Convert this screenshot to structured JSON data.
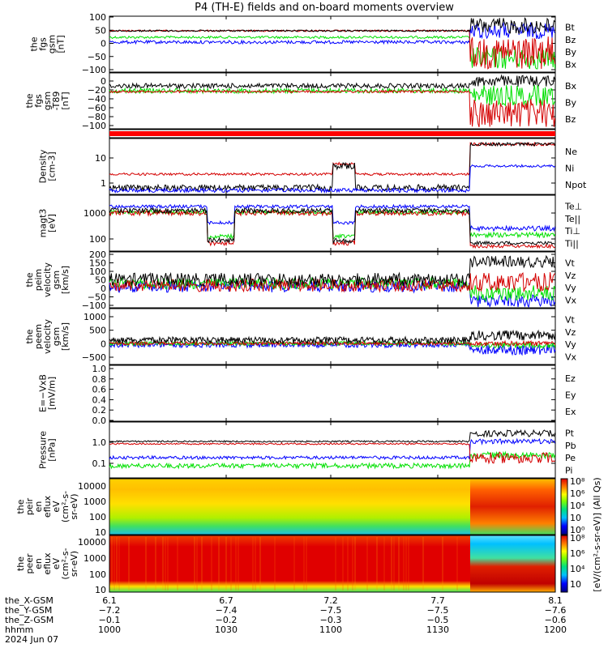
{
  "title": "P4 (TH-E) fields and on-board moments overview",
  "colors": {
    "black": "#000000",
    "red": "#d40000",
    "green": "#00e000",
    "blue": "#0000ff",
    "panel_border": "#000000"
  },
  "panels": [
    {
      "id": "fgs",
      "ylabel": [
        "the",
        "fgs",
        "gsm",
        "[nT]"
      ],
      "yticks": [
        "100",
        "50",
        "0",
        "−50",
        "−100"
      ],
      "legend": [
        {
          "text": "Bt",
          "color": "black"
        },
        {
          "text": "Bz",
          "color": "red"
        },
        {
          "text": "By",
          "color": "green"
        },
        {
          "text": "Bx",
          "color": "blue"
        }
      ]
    },
    {
      "id": "fgs_dc",
      "ylabel": [
        "the",
        "fgs",
        "gsm",
        "-T89",
        "[nT]"
      ],
      "yticks": [
        "0",
        "−20",
        "−40",
        "−60",
        "−80",
        "−100"
      ],
      "legend": [
        {
          "text": "Bx",
          "color": "black"
        },
        {
          "text": "By",
          "color": "green"
        },
        {
          "text": "Bz",
          "color": "red"
        }
      ]
    },
    {
      "id": "mode_bar",
      "ylabel": [],
      "yticks": [],
      "legend": []
    },
    {
      "id": "density",
      "ylabel": [
        "Density",
        "[cm-3]"
      ],
      "yticks": [
        "10",
        "1"
      ],
      "legend": [
        {
          "text": "Ne",
          "color": "red"
        },
        {
          "text": "Ni",
          "color": "black"
        },
        {
          "text": "Npot",
          "color": "blue"
        }
      ]
    },
    {
      "id": "temp",
      "ylabel": [
        "magt3",
        "[eV]"
      ],
      "yticks": [
        "1000",
        "100"
      ],
      "legend": [
        {
          "text": "Te⊥",
          "color": "red"
        },
        {
          "text": "Te||",
          "color": "black"
        },
        {
          "text": "Ti⊥",
          "color": "blue"
        },
        {
          "text": "Ti||",
          "color": "green"
        }
      ]
    },
    {
      "id": "vi",
      "ylabel": [
        "the",
        "peim",
        "velocity",
        "gsm",
        "[km/s]"
      ],
      "yticks": [
        "200",
        "150",
        "100",
        "50",
        "0",
        "−50",
        "−100"
      ],
      "legend": [
        {
          "text": "Vt",
          "color": "black"
        },
        {
          "text": "Vz",
          "color": "red"
        },
        {
          "text": "Vy",
          "color": "green"
        },
        {
          "text": "Vx",
          "color": "blue"
        }
      ]
    },
    {
      "id": "ve",
      "ylabel": [
        "the",
        "peem",
        "velocity",
        "gsm",
        "[km/s]"
      ],
      "yticks": [
        "1000",
        "500",
        "0",
        "−500"
      ],
      "legend": [
        {
          "text": "Vt",
          "color": "black"
        },
        {
          "text": "Vz",
          "color": "red"
        },
        {
          "text": "Vy",
          "color": "green"
        },
        {
          "text": "Vx",
          "color": "blue"
        }
      ]
    },
    {
      "id": "efield",
      "ylabel": [
        "E=−VxB",
        "[mV/m]"
      ],
      "yticks": [
        "1.0",
        "0.8",
        "0.6",
        "0.4",
        "0.2",
        "0.0"
      ],
      "legend": [
        {
          "text": "Ez",
          "color": "red"
        },
        {
          "text": "Ey",
          "color": "green"
        },
        {
          "text": "Ex",
          "color": "blue"
        }
      ]
    },
    {
      "id": "pressure",
      "ylabel": [
        "Pressure",
        "[nPa]"
      ],
      "yticks": [
        "1.0",
        "0.1"
      ],
      "legend": [
        {
          "text": "Pt",
          "color": "black"
        },
        {
          "text": "Pb",
          "color": "red"
        },
        {
          "text": "Pe",
          "color": "green"
        },
        {
          "text": "Pi",
          "color": "blue"
        }
      ]
    },
    {
      "id": "spec_i",
      "ylabel": [
        "the",
        "peir",
        "en",
        "eflux",
        "eV",
        "(cm²-s-",
        "sr-eV)"
      ],
      "yticks": [
        "10000",
        "1000",
        "100",
        "10"
      ],
      "legend": []
    },
    {
      "id": "spec_e",
      "ylabel": [
        "the",
        "peer",
        "en",
        "eflux",
        "eV",
        "(cm²-s-",
        "sr-eV)"
      ],
      "yticks": [
        "10000",
        "1000",
        "100",
        "10"
      ],
      "legend": []
    }
  ],
  "colorbar_i": {
    "labels": [
      "10⁸",
      "10⁶",
      "10⁴",
      "10⁲",
      "10⁰"
    ]
  },
  "colorbar_e": {
    "labels": [
      "10⁸",
      "10⁶",
      "10⁴",
      "10⁲"
    ]
  },
  "colorbar_title": "[eV/(cm²-s-sr-eV)] (All Qs)",
  "footer": {
    "row_labels": [
      "the_X-GSM",
      "the_Y-GSM",
      "the_Z-GSM",
      "hhmm",
      "2024 Jun 07"
    ],
    "columns": [
      {
        "x": "6.1",
        "y": "−7.2",
        "z": "−0.1",
        "hhmm": "1000"
      },
      {
        "x": "6.7",
        "y": "−7.4",
        "z": "−0.2",
        "hhmm": "1030"
      },
      {
        "x": "7.2",
        "y": "−7.5",
        "z": "−0.3",
        "hhmm": "1100"
      },
      {
        "x": "7.7",
        "y": "−7.5",
        "z": "−0.5",
        "hhmm": "1130"
      },
      {
        "x": "8.1",
        "y": "−7.6",
        "z": "−0.6",
        "hhmm": "1200"
      }
    ]
  },
  "chart_data": {
    "type": "line",
    "title": "P4 (TH-E) fields and on-board moments overview",
    "x_time_labels": [
      "1000",
      "1030",
      "1100",
      "1130",
      "1200"
    ],
    "date": "2024 Jun 07",
    "xlim": [
      "10:00",
      "12:00"
    ],
    "panels": [
      {
        "ylabel": "the fgs gsm [nT]",
        "ylim": [
          -110,
          110
        ],
        "series": [
          {
            "name": "Bt",
            "x": [
              "10:00",
              "10:30",
              "11:00",
              "11:20",
              "11:25",
              "11:35",
              "11:45",
              "11:55",
              "12:00"
            ],
            "values": [
              40,
              38,
              38,
              40,
              45,
              95,
              85,
              60,
              45
            ]
          },
          {
            "name": "Bz",
            "x": [
              "10:00",
              "10:30",
              "11:00",
              "11:20",
              "11:25",
              "11:35",
              "11:45",
              "11:55",
              "12:00"
            ],
            "values": [
              42,
              40,
              40,
              42,
              10,
              0,
              -20,
              -5,
              -10
            ]
          },
          {
            "name": "By",
            "x": [
              "10:00",
              "10:30",
              "11:00",
              "11:20",
              "11:25",
              "11:35",
              "11:45",
              "11:55",
              "12:00"
            ],
            "values": [
              10,
              8,
              8,
              8,
              -40,
              -30,
              -60,
              -30,
              -20
            ]
          },
          {
            "name": "Bx",
            "x": [
              "10:00",
              "10:30",
              "11:00",
              "11:20",
              "11:25",
              "11:35",
              "11:45",
              "11:55",
              "12:00"
            ],
            "values": [
              5,
              2,
              4,
              2,
              30,
              40,
              40,
              30,
              20
            ]
          }
        ]
      },
      {
        "ylabel": "the fgs gsm -T89 [nT]",
        "ylim": [
          -110,
          5
        ],
        "series": [
          {
            "name": "Bx",
            "x": [
              "10:00",
              "10:30",
              "11:00",
              "11:25",
              "11:40",
              "12:00"
            ],
            "values": [
              -15,
              -5,
              -5,
              -5,
              -10,
              -10
            ]
          },
          {
            "name": "By",
            "x": [
              "10:00",
              "10:30",
              "11:00",
              "11:25",
              "11:40",
              "12:00"
            ],
            "values": [
              -15,
              -10,
              -10,
              -20,
              -30,
              -15
            ]
          },
          {
            "name": "Bz",
            "x": [
              "10:00",
              "10:30",
              "11:00",
              "11:25",
              "11:40",
              "12:00"
            ],
            "values": [
              -15,
              -15,
              -15,
              -60,
              -80,
              -60
            ]
          }
        ]
      },
      {
        "ylabel": "Density [cm-3]",
        "ylim": [
          0.3,
          40
        ],
        "log": true,
        "series": [
          {
            "name": "Ne",
            "x": [
              "10:00",
              "10:30",
              "11:00",
              "11:10",
              "11:25",
              "11:30",
              "12:00"
            ],
            "values": [
              2,
              2.5,
              2,
              6,
              2,
              25,
              30
            ]
          },
          {
            "name": "Ni",
            "x": [
              "10:00",
              "10:30",
              "11:00",
              "11:10",
              "11:25",
              "11:30",
              "12:00"
            ],
            "values": [
              0.6,
              2,
              0.6,
              5,
              0.7,
              25,
              30
            ]
          },
          {
            "name": "Npot",
            "x": [
              "10:00",
              "10:30",
              "11:00",
              "11:10",
              "11:25",
              "11:30",
              "12:00"
            ],
            "values": [
              0.5,
              0.8,
              0.7,
              0.5,
              0.9,
              4,
              4
            ]
          }
        ]
      },
      {
        "ylabel": "magt3 [eV]",
        "ylim": [
          40,
          3000
        ],
        "log": true,
        "series": [
          {
            "name": "Te⊥",
            "x": [
              "10:00",
              "10:30",
              "11:00",
              "11:10",
              "11:25",
              "11:30",
              "12:00"
            ],
            "values": [
              1200,
              300,
              800,
              60,
              1200,
              60,
              50
            ]
          },
          {
            "name": "Te||",
            "x": [
              "10:00",
              "10:30",
              "11:00",
              "11:10",
              "11:25",
              "11:30",
              "12:00"
            ],
            "values": [
              1300,
              350,
              900,
              70,
              1300,
              70,
              60
            ]
          },
          {
            "name": "Ti⊥",
            "x": [
              "10:00",
              "10:30",
              "11:00",
              "11:10",
              "11:25",
              "11:30",
              "12:00"
            ],
            "values": [
              1500,
              2000,
              2000,
              1500,
              2200,
              300,
              300
            ]
          },
          {
            "name": "Ti||",
            "x": [
              "10:00",
              "10:30",
              "11:00",
              "11:10",
              "11:25",
              "11:30",
              "12:00"
            ],
            "values": [
              1200,
              900,
              1500,
              300,
              1500,
              200,
              200
            ]
          }
        ]
      },
      {
        "ylabel": "the peim velocity gsm [km/s]",
        "ylim": [
          -120,
          200
        ],
        "series": [
          {
            "name": "Vt",
            "x": [
              "10:00",
              "10:30",
              "11:00",
              "11:25",
              "11:35",
              "12:00"
            ],
            "values": [
              40,
              60,
              50,
              50,
              130,
              150
            ]
          },
          {
            "name": "Vz",
            "x": [
              "10:00",
              "10:30",
              "11:00",
              "11:25",
              "11:35",
              "12:00"
            ],
            "values": [
              20,
              10,
              10,
              10,
              20,
              0
            ]
          },
          {
            "name": "Vy",
            "x": [
              "10:00",
              "10:30",
              "11:00",
              "11:25",
              "11:35",
              "12:00"
            ],
            "values": [
              10,
              0,
              5,
              0,
              -50,
              -80
            ]
          },
          {
            "name": "Vx",
            "x": [
              "10:00",
              "10:30",
              "11:00",
              "11:25",
              "11:35",
              "12:00"
            ],
            "values": [
              0,
              -10,
              0,
              -10,
              -60,
              -100
            ]
          }
        ]
      },
      {
        "ylabel": "the peem velocity gsm [km/s]",
        "ylim": [
          -600,
          1200
        ],
        "series": [
          {
            "name": "Vt",
            "x": [
              "10:00",
              "11:00",
              "11:25",
              "11:30",
              "12:00"
            ],
            "values": [
              100,
              100,
              150,
              200,
              250
            ]
          },
          {
            "name": "Vz",
            "x": [
              "10:00",
              "11:00",
              "11:25",
              "11:30",
              "12:00"
            ],
            "values": [
              0,
              0,
              0,
              0,
              0
            ]
          },
          {
            "name": "Vy",
            "x": [
              "10:00",
              "11:00",
              "11:25",
              "11:30",
              "12:00"
            ],
            "values": [
              0,
              0,
              0,
              -50,
              -50
            ]
          },
          {
            "name": "Vx",
            "x": [
              "10:00",
              "11:00",
              "11:25",
              "11:30",
              "12:00"
            ],
            "values": [
              -50,
              -50,
              -50,
              -150,
              -150
            ]
          }
        ]
      },
      {
        "ylabel": "E=−VxB [mV/m]",
        "ylim": [
          0.0,
          1.0
        ],
        "series": []
      },
      {
        "ylabel": "Pressure [nPa]",
        "ylim": [
          0.03,
          3
        ],
        "log": true,
        "series": [
          {
            "name": "Pt",
            "x": [
              "10:00",
              "10:30",
              "11:00",
              "11:25",
              "11:30",
              "12:00"
            ],
            "values": [
              1.0,
              1.0,
              1.0,
              1.0,
              2.0,
              1.5
            ]
          },
          {
            "name": "Pb",
            "x": [
              "10:00",
              "10:30",
              "11:00",
              "11:25",
              "11:30",
              "12:00"
            ],
            "values": [
              0.9,
              0.8,
              0.8,
              0.8,
              0.3,
              0.2
            ]
          },
          {
            "name": "Pe",
            "x": [
              "10:00",
              "10:30",
              "11:00",
              "11:25",
              "11:30",
              "12:00"
            ],
            "values": [
              0.1,
              0.06,
              0.1,
              0.08,
              0.4,
              0.3
            ]
          },
          {
            "name": "Pi",
            "x": [
              "10:00",
              "10:30",
              "11:00",
              "11:25",
              "11:30",
              "12:00"
            ],
            "values": [
              0.15,
              0.2,
              0.2,
              0.2,
              1.0,
              1.2
            ]
          }
        ]
      }
    ]
  }
}
